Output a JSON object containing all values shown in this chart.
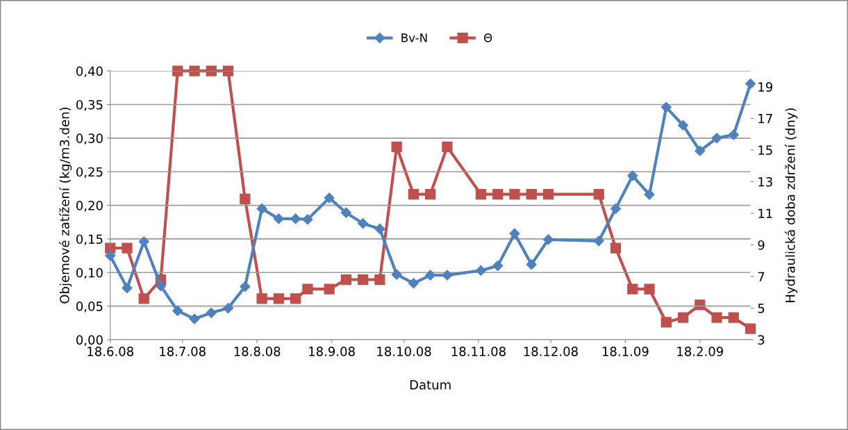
{
  "chart_data": {
    "type": "line",
    "xlabel": "Datum",
    "ylabel": "Objemové zatížení (kg/m3.den)",
    "y2label": "Hydraulická doba zdržení (dny)",
    "x": [
      "2008-06-18",
      "2008-06-25",
      "2008-07-02",
      "2008-07-09",
      "2008-07-16",
      "2008-07-23",
      "2008-07-30",
      "2008-08-06",
      "2008-08-13",
      "2008-08-20",
      "2008-08-27",
      "2008-09-03",
      "2008-09-08",
      "2008-09-17",
      "2008-09-24",
      "2008-10-01",
      "2008-10-08",
      "2008-10-15",
      "2008-10-22",
      "2008-10-29",
      "2008-11-05",
      "2008-11-19",
      "2008-11-26",
      "2008-12-03",
      "2008-12-10",
      "2008-12-17",
      "2009-01-07",
      "2009-01-14",
      "2009-01-21",
      "2009-01-28",
      "2009-02-04",
      "2009-02-11",
      "2009-02-18",
      "2009-02-25",
      "2009-03-04",
      "2009-03-11"
    ],
    "series": [
      {
        "name": "Bv-N",
        "color": "#4f81bd",
        "marker": "diamond",
        "values": [
          0.125,
          0.077,
          0.146,
          0.08,
          0.043,
          0.031,
          0.04,
          0.047,
          0.079,
          0.195,
          0.18,
          0.18,
          0.179,
          0.211,
          0.189,
          0.173,
          0.165,
          0.097,
          0.084,
          0.096,
          0.096,
          0.103,
          0.11,
          0.158,
          0.112,
          0.149,
          0.147,
          0.195,
          0.244,
          0.216,
          0.346,
          0.319,
          0.281,
          0.3,
          0.305,
          0.381
        ]
      },
      {
        "name": "Θ",
        "color": "#c0504d",
        "marker": "square",
        "axis": "y2",
        "values": [
          8.8,
          8.8,
          5.6,
          6.8,
          20,
          20,
          20,
          20,
          11.9,
          5.6,
          5.6,
          5.6,
          6.2,
          6.2,
          6.8,
          6.8,
          6.8,
          15.2,
          12.2,
          12.2,
          15.2,
          12.2,
          12.2,
          12.2,
          12.2,
          12.2,
          12.2,
          8.8,
          6.2,
          6.2,
          4.1,
          4.4,
          5.2,
          4.4,
          4.4,
          3.7
        ]
      }
    ],
    "xlim": [
      "2008-06-18",
      "2009-03-11"
    ],
    "xticks": [
      {
        "value": "2008-06-18",
        "label": "18.6.08"
      },
      {
        "value": "2008-07-18",
        "label": "18.7.08"
      },
      {
        "value": "2008-08-18",
        "label": "18.8.08"
      },
      {
        "value": "2008-09-18",
        "label": "18.9.08"
      },
      {
        "value": "2008-10-18",
        "label": "18.10.08"
      },
      {
        "value": "2008-11-18",
        "label": "18.11.08"
      },
      {
        "value": "2008-12-18",
        "label": "18.12.08"
      },
      {
        "value": "2009-01-18",
        "label": "18.1.09"
      },
      {
        "value": "2009-02-18",
        "label": "18.2.09"
      }
    ],
    "ylim": [
      0,
      0.4
    ],
    "yticks": [
      {
        "value": 0,
        "label": "0,00"
      },
      {
        "value": 0.05,
        "label": "0,05"
      },
      {
        "value": 0.1,
        "label": "0,10"
      },
      {
        "value": 0.15,
        "label": "0,15"
      },
      {
        "value": 0.2,
        "label": "0,20"
      },
      {
        "value": 0.25,
        "label": "0,25"
      },
      {
        "value": 0.3,
        "label": "0,30"
      },
      {
        "value": 0.35,
        "label": "0,35"
      },
      {
        "value": 0.4,
        "label": "0,40"
      }
    ],
    "y2lim": [
      3,
      20
    ],
    "y2ticks": [
      3,
      5,
      7,
      9,
      11,
      13,
      15,
      17,
      19
    ],
    "grid": "y",
    "legend": "top",
    "line_style": "solid"
  }
}
